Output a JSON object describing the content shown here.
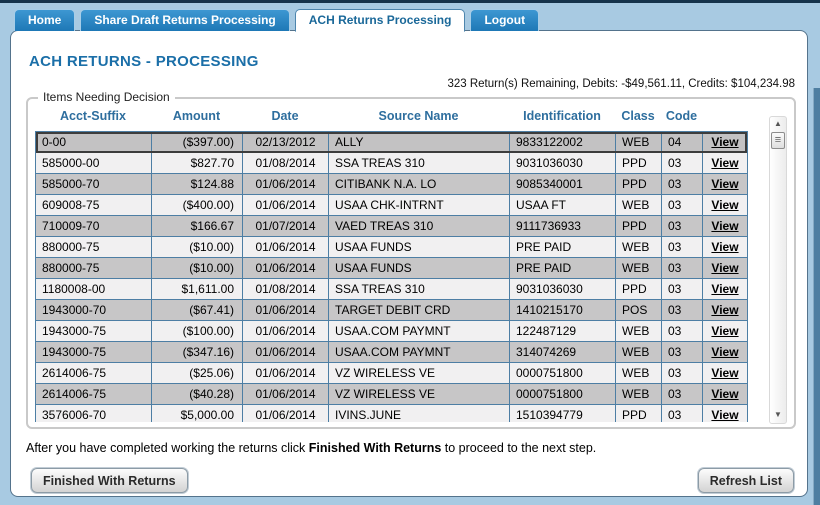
{
  "tabs": [
    {
      "label": "Home",
      "active": false
    },
    {
      "label": "Share Draft Returns Processing",
      "active": false
    },
    {
      "label": "ACH Returns Processing",
      "active": true
    },
    {
      "label": "Logout",
      "active": false
    }
  ],
  "page": {
    "title": "ACH RETURNS - PROCESSING",
    "summary": "323 Return(s) Remaining, Debits: -$49,561.11, Credits: $104,234.98"
  },
  "items_panel": {
    "legend": "Items Needing Decision",
    "columns": [
      "Acct-Suffix",
      "Amount",
      "Date",
      "Source Name",
      "Identification",
      "Class",
      "Code"
    ],
    "view_label": "View",
    "rows": [
      {
        "acct": "0-00",
        "amount": "($397.00)",
        "date": "02/13/2012",
        "source": "ALLY",
        "ident": "9833122002",
        "class": "WEB",
        "code": "04",
        "selected": true
      },
      {
        "acct": "585000-00",
        "amount": "$827.70",
        "date": "01/08/2014",
        "source": "SSA TREAS 310",
        "ident": "9031036030",
        "class": "PPD",
        "code": "03",
        "selected": false
      },
      {
        "acct": "585000-70",
        "amount": "$124.88",
        "date": "01/06/2014",
        "source": "CITIBANK N.A. LO",
        "ident": "9085340001",
        "class": "PPD",
        "code": "03",
        "selected": false
      },
      {
        "acct": "609008-75",
        "amount": "($400.00)",
        "date": "01/06/2014",
        "source": "USAA CHK-INTRNT",
        "ident": "USAA FT",
        "class": "WEB",
        "code": "03",
        "selected": false
      },
      {
        "acct": "710009-70",
        "amount": "$166.67",
        "date": "01/07/2014",
        "source": "VAED TREAS 310",
        "ident": "9111736933",
        "class": "PPD",
        "code": "03",
        "selected": false
      },
      {
        "acct": "880000-75",
        "amount": "($10.00)",
        "date": "01/06/2014",
        "source": "USAA FUNDS",
        "ident": "PRE PAID",
        "class": "WEB",
        "code": "03",
        "selected": false
      },
      {
        "acct": "880000-75",
        "amount": "($10.00)",
        "date": "01/06/2014",
        "source": "USAA FUNDS",
        "ident": "PRE PAID",
        "class": "WEB",
        "code": "03",
        "selected": false
      },
      {
        "acct": "1180008-00",
        "amount": "$1,611.00",
        "date": "01/08/2014",
        "source": "SSA TREAS 310",
        "ident": "9031036030",
        "class": "PPD",
        "code": "03",
        "selected": false
      },
      {
        "acct": "1943000-70",
        "amount": "($67.41)",
        "date": "01/06/2014",
        "source": "TARGET DEBIT CRD",
        "ident": "1410215170",
        "class": "POS",
        "code": "03",
        "selected": false
      },
      {
        "acct": "1943000-75",
        "amount": "($100.00)",
        "date": "01/06/2014",
        "source": "USAA.COM PAYMNT",
        "ident": "122487129",
        "class": "WEB",
        "code": "03",
        "selected": false
      },
      {
        "acct": "1943000-75",
        "amount": "($347.16)",
        "date": "01/06/2014",
        "source": "USAA.COM PAYMNT",
        "ident": "314074269",
        "class": "WEB",
        "code": "03",
        "selected": false
      },
      {
        "acct": "2614006-75",
        "amount": "($25.06)",
        "date": "01/06/2014",
        "source": "VZ WIRELESS VE",
        "ident": "0000751800",
        "class": "WEB",
        "code": "03",
        "selected": false
      },
      {
        "acct": "2614006-75",
        "amount": "($40.28)",
        "date": "01/06/2014",
        "source": "VZ WIRELESS VE",
        "ident": "0000751800",
        "class": "WEB",
        "code": "03",
        "selected": false
      },
      {
        "acct": "3576006-70",
        "amount": "$5,000.00",
        "date": "01/06/2014",
        "source": "IVINS.JUNE",
        "ident": "1510394779",
        "class": "PPD",
        "code": "03",
        "selected": false
      }
    ]
  },
  "footer": {
    "instruction_prefix": "After you have completed working the returns click ",
    "instruction_bold": "Finished With Returns",
    "instruction_suffix": " to proceed to the next step.",
    "finished_button": "Finished With Returns",
    "refresh_button": "Refresh List"
  },
  "colors": {
    "accent_blue": "#1b6fa8",
    "tab_blue": "#1e78b6",
    "grid_border": "#4d7ea4",
    "row_grey": "#c7c6c7",
    "row_light": "#f1f0f1",
    "page_background": "#a8cae2"
  }
}
